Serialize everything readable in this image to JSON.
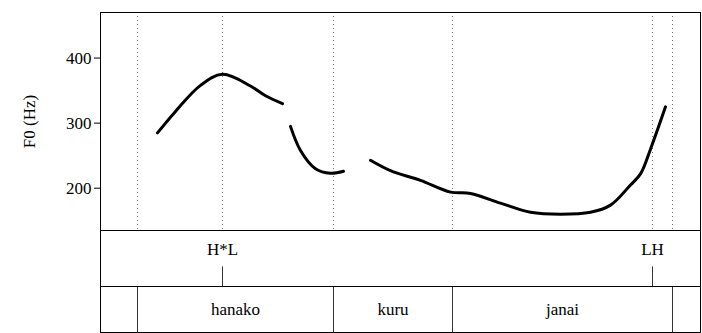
{
  "chart_data": {
    "type": "line",
    "y_label": "F0 (Hz)",
    "color": "#000000",
    "tick_labels": "y",
    "xlim": [
      0,
      1.2
    ],
    "ylim": [
      135,
      470
    ],
    "yticks": [
      200,
      300,
      400
    ],
    "x": [
      0.114,
      0.15,
      0.2,
      0.244,
      0.3,
      0.33,
      0.364,
      0.372,
      0.38,
      0.4,
      0.43,
      0.46,
      0.486,
      0.51,
      0.54,
      0.58,
      0.64,
      0.7,
      0.74,
      0.8,
      0.86,
      0.92,
      0.98,
      1.02,
      1.06,
      1.08,
      1.1,
      1.13
    ],
    "values": [
      285,
      318,
      358,
      375,
      357,
      342,
      330,
      null,
      295,
      258,
      230,
      223,
      226,
      null,
      243,
      227,
      212,
      194,
      192,
      177,
      163,
      160,
      163,
      174,
      205,
      222,
      260,
      325
    ],
    "tiers": [
      {
        "points": [
          {
            "x": 0.244,
            "text": "H*L"
          },
          {
            "x": 1.104,
            "text": "LH"
          }
        ]
      },
      {
        "boundaries": [
          0.074,
          0.466,
          0.704,
          1.144
        ],
        "intervals": [
          {
            "start": 0.074,
            "end": 0.466,
            "text": "hanako"
          },
          {
            "start": 0.466,
            "end": 0.704,
            "text": "kuru"
          },
          {
            "start": 0.704,
            "end": 1.144,
            "text": "janai"
          }
        ]
      }
    ]
  }
}
